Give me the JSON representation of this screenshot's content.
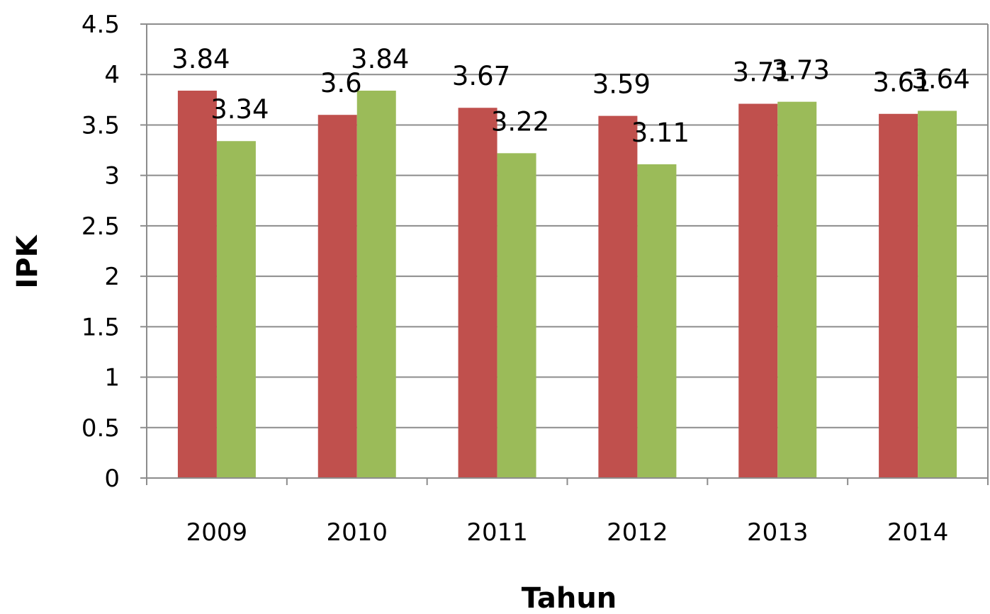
{
  "chart_data": {
    "type": "bar",
    "title": "",
    "xlabel": "Tahun",
    "ylabel": "IPK",
    "categories": [
      "2009",
      "2010",
      "2011",
      "2012",
      "2013",
      "2014"
    ],
    "series": [
      {
        "values": [
          3.84,
          3.6,
          3.67,
          3.59,
          3.71,
          3.61
        ],
        "labels": [
          "3.84",
          "3.6",
          "3.67",
          "3.59",
          "3.71",
          "3.61"
        ],
        "color": "#c0504d"
      },
      {
        "values": [
          3.34,
          3.84,
          3.22,
          3.11,
          3.73,
          3.64
        ],
        "labels": [
          "3.34",
          "3.84",
          "3.22",
          "3.11",
          "3.73",
          "3.64"
        ],
        "color": "#9bbb59"
      }
    ],
    "ylim": [
      0,
      4.5
    ],
    "yticks": [
      0,
      0.5,
      1,
      1.5,
      2,
      2.5,
      3,
      3.5,
      4,
      4.5
    ],
    "ytick_labels": [
      "0",
      "0.5",
      "1",
      "1.5",
      "2",
      "2.5",
      "3",
      "3.5",
      "4",
      "4.5"
    ],
    "grid": true,
    "legend": "none"
  }
}
